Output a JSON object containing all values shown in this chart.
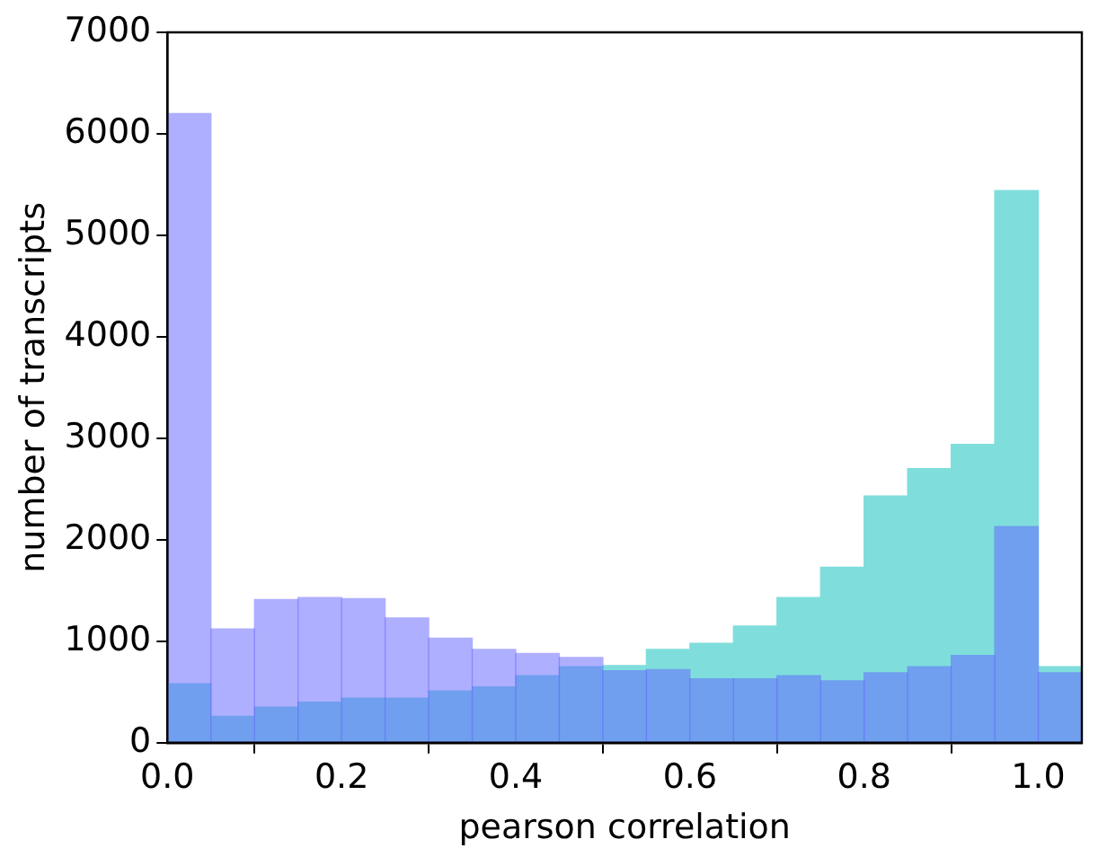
{
  "chart_data": {
    "type": "histogram",
    "xlabel": "pearson correlation",
    "ylabel": "number of transcripts",
    "bins": [
      0,
      0.05,
      0.1,
      0.15,
      0.2,
      0.25,
      0.3,
      0.35,
      0.4,
      0.45,
      0.5,
      0.55,
      0.6,
      0.65,
      0.7,
      0.75,
      0.8,
      0.85,
      0.9,
      0.95,
      1.0,
      1.05
    ],
    "series": [
      {
        "color": "#7fdedc",
        "values": [
          580,
          260,
          350,
          400,
          440,
          440,
          510,
          550,
          660,
          750,
          760,
          920,
          980,
          1150,
          1430,
          1730,
          2430,
          2700,
          2940,
          5440,
          750
        ]
      },
      {
        "color": "#5f5fff",
        "values": [
          6200,
          1120,
          1410,
          1430,
          1420,
          1230,
          1030,
          920,
          880,
          840,
          710,
          720,
          630,
          630,
          660,
          610,
          690,
          750,
          860,
          2130,
          690
        ]
      }
    ],
    "xlim": [
      0,
      1.05
    ],
    "ylim": [
      0,
      7000
    ],
    "xticks": [
      {
        "value": 0,
        "label": "0.0"
      },
      {
        "value": 0.2,
        "label": "0.2"
      },
      {
        "value": 0.4,
        "label": "0.4"
      },
      {
        "value": 0.6,
        "label": "0.6"
      },
      {
        "value": 0.8,
        "label": "0.8"
      },
      {
        "value": 1.0,
        "label": "1.0"
      }
    ],
    "yticks": [
      0,
      1000,
      2000,
      3000,
      4000,
      5000,
      6000,
      7000
    ]
  }
}
